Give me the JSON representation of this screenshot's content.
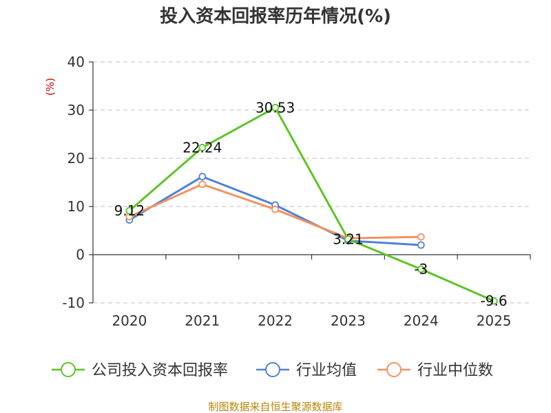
{
  "chart_data": {
    "type": "line",
    "title": "投入资本回报率历年情况(%)",
    "ylabel": "(%)",
    "categories": [
      "2020",
      "2021",
      "2022",
      "2023",
      "2024",
      "2025"
    ],
    "ylim": [
      -10,
      40
    ],
    "yticks": [
      -10,
      0,
      10,
      20,
      30,
      40
    ],
    "grid": true,
    "legend_position": "bottom",
    "series": [
      {
        "name": "公司投入资本回报率",
        "color": "#5cc424",
        "values": [
          9.12,
          22.24,
          30.53,
          3.21,
          -3,
          -9.6
        ],
        "labels": [
          "9.12",
          "22.24",
          "30.53",
          "3.21",
          "-3",
          "-9.6"
        ]
      },
      {
        "name": "行业均值",
        "color": "#4f80d9",
        "values": [
          7.2,
          16.2,
          10.3,
          2.9,
          2.0,
          null
        ]
      },
      {
        "name": "行业中位数",
        "color": "#f4915f",
        "values": [
          7.9,
          14.6,
          9.4,
          3.4,
          3.7,
          null
        ]
      }
    ]
  },
  "source": "制图数据来自恒生聚源数据库"
}
